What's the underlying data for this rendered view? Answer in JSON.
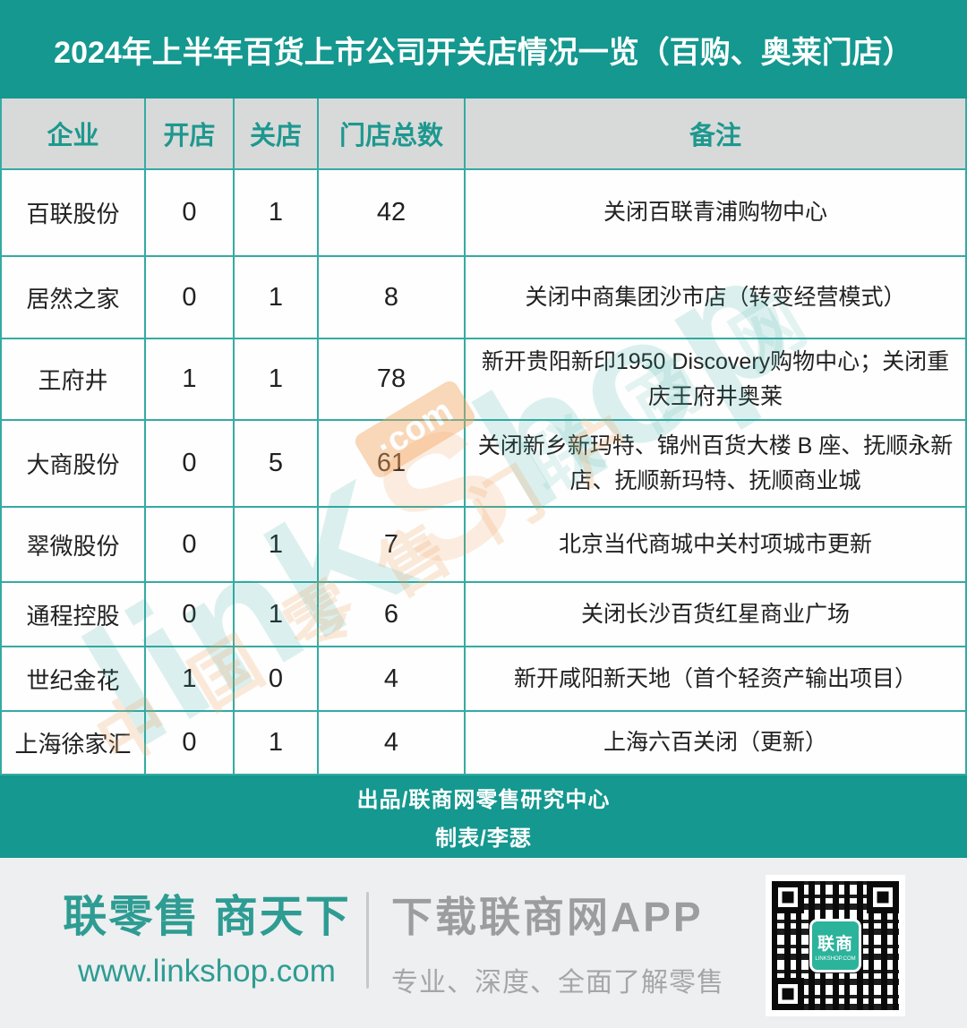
{
  "header": {
    "title": "2024年上半年百货上市公司开关店情况一览（百购、奥莱门店）"
  },
  "chart_data": {
    "type": "table",
    "title": "2024年上半年百货上市公司开关店情况一览（百购、奥莱门店）",
    "columns": [
      "企业",
      "开店",
      "关店",
      "门店总数",
      "备注"
    ],
    "rows": [
      [
        "百联股份",
        "0",
        "1",
        "42",
        "关闭百联青浦购物中心"
      ],
      [
        "居然之家",
        "0",
        "1",
        "8",
        "关闭中商集团沙市店（转变经营模式）"
      ],
      [
        "王府井",
        "1",
        "1",
        "78",
        "新开贵阳新印1950 Discovery购物中心；关闭重庆王府井奥莱"
      ],
      [
        "大商股份",
        "0",
        "5",
        "61",
        "关闭新乡新玛特、锦州百货大楼 B 座、抚顺永新店、抚顺新玛特、抚顺商业城"
      ],
      [
        "翠微股份",
        "0",
        "1",
        "7",
        "北京当代商城中关村项城市更新"
      ],
      [
        "通程控股",
        "0",
        "1",
        "6",
        "关闭长沙百货红星商业广场"
      ],
      [
        "世纪金花",
        "1",
        "0",
        "4",
        "新开咸阳新天地（首个轻资产输出项目）"
      ],
      [
        "上海徐家汇",
        "0",
        "1",
        "4",
        "上海六百关闭（更新）"
      ]
    ]
  },
  "credits": {
    "produced_by": "出品/联商网零售研究中心",
    "chart_by": "制表/李瑟"
  },
  "branding": {
    "slogan": "联零售 商天下",
    "website": "www.linkshop.com",
    "app_title": "下载联商网APP",
    "app_subtitle": "专业、深度、全面了解零售",
    "qr_logo_cn": "联商",
    "qr_logo_en": "LINKSHOP.COM"
  },
  "watermark": {
    "part1": "lin",
    "part2": "K",
    "part3": "S",
    "part4": "hop",
    "com_tag": "·com",
    "cn_site": "联商网",
    "cn_slogan": "中国零售门户"
  },
  "colors": {
    "teal": "#14988f",
    "border_teal": "#35aaa3",
    "header_gray": "#d8dad9",
    "accent_orange": "#f5a35c",
    "qr_logo_green": "#2bb39b"
  }
}
